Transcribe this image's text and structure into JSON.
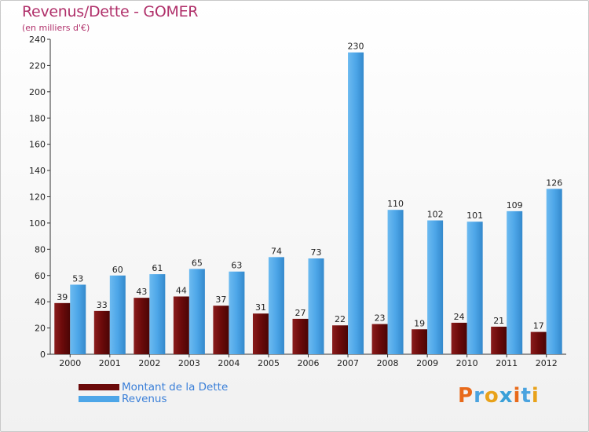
{
  "header": {
    "title": "Revenus/Dette - GOMER",
    "subtitle": "(en milliers d'€)"
  },
  "legend": [
    {
      "label": "Montant de la Dette",
      "color": "#6b0a0a"
    },
    {
      "label": "Revenus",
      "color": "#4da6e8"
    }
  ],
  "logo": {
    "text": "Proxiti",
    "letters": [
      "P",
      "r",
      "o",
      "x",
      "i",
      "t",
      "i"
    ],
    "colors": [
      "#e86a1a",
      "#4aa3df",
      "#e8a21a",
      "#3aa0d8",
      "#e86a1a",
      "#4aa3df",
      "#e8a21a"
    ]
  },
  "chart_data": {
    "type": "bar",
    "title": "Revenus/Dette - GOMER",
    "ylabel": "(en milliers d'€)",
    "xlabel": "",
    "ylim": [
      0,
      240
    ],
    "yticks": [
      0,
      20,
      40,
      60,
      80,
      100,
      120,
      140,
      160,
      180,
      200,
      220,
      240
    ],
    "grid": false,
    "categories": [
      "2000",
      "2001",
      "2002",
      "2003",
      "2004",
      "2005",
      "2006",
      "2007",
      "2008",
      "2009",
      "2010",
      "2011",
      "2012"
    ],
    "series": [
      {
        "name": "Montant de la Dette",
        "color": "#6b0a0a",
        "values": [
          39,
          33,
          43,
          44,
          37,
          31,
          27,
          22,
          23,
          19,
          24,
          21,
          17
        ]
      },
      {
        "name": "Revenus",
        "color": "#4da6e8",
        "values": [
          53,
          60,
          61,
          65,
          63,
          74,
          73,
          230,
          110,
          102,
          101,
          109,
          126
        ]
      }
    ]
  }
}
